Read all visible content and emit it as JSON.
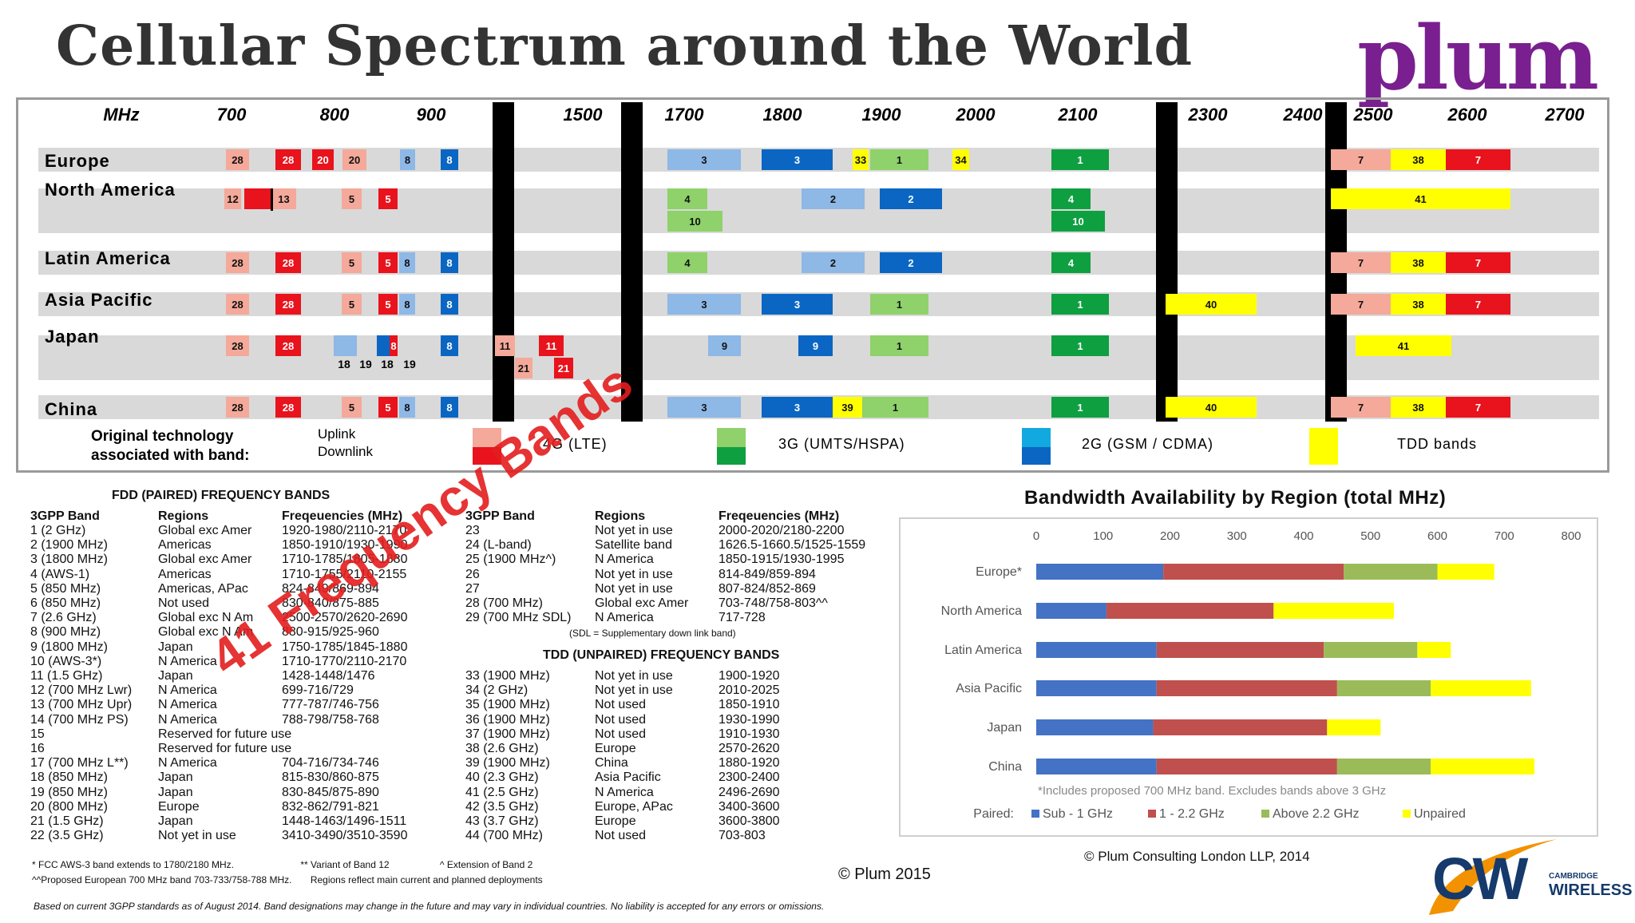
{
  "page_title": "Cellular Spectrum around the World",
  "logo_text": "plum",
  "colors": {
    "lte_uplink": "#f4a99a",
    "lte_downlink": "#e8131c",
    "g3_uplink": "#8fd16a",
    "g3_downlink": "#0e9f41",
    "g2_uplink": "#8eb8e6",
    "g2_downlink": "#0a66c2",
    "tdd": "#ffff00",
    "row_bg": "#d9d9d9",
    "divider": "#000000"
  },
  "spectrum": {
    "axis_unit": "MHz",
    "ticks": [
      "700",
      "800",
      "900",
      "1500",
      "1700",
      "1800",
      "1900",
      "2000",
      "2100",
      "2300",
      "2400",
      "2500",
      "2600",
      "2700"
    ],
    "regions": [
      "Europe",
      "North America",
      "Latin America",
      "Asia Pacific",
      "Japan",
      "China"
    ],
    "japan_sublabels": [
      "18",
      "19",
      "18",
      "19"
    ],
    "legend": {
      "title_line1": "Original technology",
      "title_line2": "associated with band:",
      "uplink": "Uplink",
      "downlink": "Downlink",
      "items": [
        "4G (LTE)",
        "3G (UMTS/HSPA)",
        "2G (GSM / CDMA)",
        "TDD bands"
      ]
    },
    "bands": [
      {
        "region": 0,
        "label": "28",
        "kind": "lte_uplink",
        "x1": 283,
        "x2": 312,
        "lane": 0
      },
      {
        "region": 0,
        "label": "28",
        "kind": "lte_downlink",
        "x1": 345,
        "x2": 377,
        "lane": 0
      },
      {
        "region": 0,
        "label": "20",
        "kind": "lte_downlink",
        "x1": 391,
        "x2": 418,
        "lane": 0
      },
      {
        "region": 0,
        "label": "20",
        "kind": "lte_uplink",
        "x1": 429,
        "x2": 459,
        "lane": 0
      },
      {
        "region": 0,
        "label": "8",
        "kind": "g2_uplink",
        "x1": 501,
        "x2": 520,
        "lane": 0
      },
      {
        "region": 0,
        "label": "8",
        "kind": "g2_downlink",
        "x1": 552,
        "x2": 574,
        "lane": 0
      },
      {
        "region": 0,
        "label": "3",
        "kind": "g2_uplink",
        "x1": 836,
        "x2": 928,
        "lane": 0
      },
      {
        "region": 0,
        "label": "3",
        "kind": "g2_downlink",
        "x1": 954,
        "x2": 1043,
        "lane": 0
      },
      {
        "region": 0,
        "label": "33",
        "kind": "tdd",
        "x1": 1068,
        "x2": 1088,
        "lane": 0
      },
      {
        "region": 0,
        "label": "1",
        "kind": "g3_uplink",
        "x1": 1090,
        "x2": 1163,
        "lane": 0
      },
      {
        "region": 0,
        "label": "34",
        "kind": "tdd",
        "x1": 1193,
        "x2": 1214,
        "lane": 0
      },
      {
        "region": 0,
        "label": "1",
        "kind": "g3_downlink",
        "x1": 1317,
        "x2": 1389,
        "lane": 0
      },
      {
        "region": 0,
        "label": "7",
        "kind": "lte_uplink",
        "x1": 1667,
        "x2": 1742,
        "lane": 0
      },
      {
        "region": 0,
        "label": "38",
        "kind": "tdd",
        "x1": 1742,
        "x2": 1811,
        "lane": 0
      },
      {
        "region": 0,
        "label": "7",
        "kind": "lte_downlink",
        "x1": 1811,
        "x2": 1892,
        "lane": 0
      },
      {
        "region": 1,
        "label": "12",
        "kind": "lte_uplink",
        "x1": 281,
        "x2": 302,
        "lane": 0
      },
      {
        "region": 1,
        "label": "",
        "kind": "lte_downlink",
        "x1": 306,
        "x2": 340,
        "lane": 0
      },
      {
        "region": 1,
        "label": "13",
        "kind": "lte_uplink",
        "x1": 340,
        "x2": 371,
        "lane": 0
      },
      {
        "region": 1,
        "label": "5",
        "kind": "lte_uplink",
        "x1": 428,
        "x2": 453,
        "lane": 0
      },
      {
        "region": 1,
        "label": "5",
        "kind": "lte_downlink",
        "x1": 474,
        "x2": 498,
        "lane": 0
      },
      {
        "region": 1,
        "label": "4",
        "kind": "g3_uplink",
        "x1": 836,
        "x2": 886,
        "lane": 0
      },
      {
        "region": 1,
        "label": "10",
        "kind": "g3_uplink",
        "x1": 836,
        "x2": 905,
        "lane": 1
      },
      {
        "region": 1,
        "label": "2",
        "kind": "g2_uplink",
        "x1": 1004,
        "x2": 1083,
        "lane": 0
      },
      {
        "region": 1,
        "label": "2",
        "kind": "g2_downlink",
        "x1": 1102,
        "x2": 1180,
        "lane": 0
      },
      {
        "region": 1,
        "label": "4",
        "kind": "g3_downlink",
        "x1": 1317,
        "x2": 1366,
        "lane": 0
      },
      {
        "region": 1,
        "label": "10",
        "kind": "g3_downlink",
        "x1": 1317,
        "x2": 1384,
        "lane": 1
      },
      {
        "region": 1,
        "label": "41",
        "kind": "tdd",
        "x1": 1667,
        "x2": 1892,
        "lane": 0
      },
      {
        "region": 2,
        "label": "28",
        "kind": "lte_uplink",
        "x1": 283,
        "x2": 312,
        "lane": 0
      },
      {
        "region": 2,
        "label": "28",
        "kind": "lte_downlink",
        "x1": 345,
        "x2": 377,
        "lane": 0
      },
      {
        "region": 2,
        "label": "5",
        "kind": "lte_uplink",
        "x1": 428,
        "x2": 453,
        "lane": 0
      },
      {
        "region": 2,
        "label": "5",
        "kind": "lte_downlink",
        "x1": 474,
        "x2": 498,
        "lane": 0
      },
      {
        "region": 2,
        "label": "8",
        "kind": "g2_uplink",
        "x1": 500,
        "x2": 520,
        "lane": 0
      },
      {
        "region": 2,
        "label": "8",
        "kind": "g2_downlink",
        "x1": 552,
        "x2": 574,
        "lane": 0
      },
      {
        "region": 2,
        "label": "4",
        "kind": "g3_uplink",
        "x1": 836,
        "x2": 886,
        "lane": 0
      },
      {
        "region": 2,
        "label": "2",
        "kind": "g2_uplink",
        "x1": 1004,
        "x2": 1083,
        "lane": 0
      },
      {
        "region": 2,
        "label": "2",
        "kind": "g2_downlink",
        "x1": 1102,
        "x2": 1180,
        "lane": 0
      },
      {
        "region": 2,
        "label": "4",
        "kind": "g3_downlink",
        "x1": 1317,
        "x2": 1366,
        "lane": 0
      },
      {
        "region": 2,
        "label": "7",
        "kind": "lte_uplink",
        "x1": 1667,
        "x2": 1742,
        "lane": 0
      },
      {
        "region": 2,
        "label": "38",
        "kind": "tdd",
        "x1": 1742,
        "x2": 1811,
        "lane": 0
      },
      {
        "region": 2,
        "label": "7",
        "kind": "lte_downlink",
        "x1": 1811,
        "x2": 1892,
        "lane": 0
      },
      {
        "region": 3,
        "label": "28",
        "kind": "lte_uplink",
        "x1": 283,
        "x2": 312,
        "lane": 0
      },
      {
        "region": 3,
        "label": "28",
        "kind": "lte_downlink",
        "x1": 345,
        "x2": 377,
        "lane": 0
      },
      {
        "region": 3,
        "label": "5",
        "kind": "lte_uplink",
        "x1": 428,
        "x2": 453,
        "lane": 0
      },
      {
        "region": 3,
        "label": "5",
        "kind": "lte_downlink",
        "x1": 474,
        "x2": 498,
        "lane": 0
      },
      {
        "region": 3,
        "label": "8",
        "kind": "g2_uplink",
        "x1": 500,
        "x2": 520,
        "lane": 0
      },
      {
        "region": 3,
        "label": "8",
        "kind": "g2_downlink",
        "x1": 552,
        "x2": 574,
        "lane": 0
      },
      {
        "region": 3,
        "label": "3",
        "kind": "g2_uplink",
        "x1": 836,
        "x2": 928,
        "lane": 0
      },
      {
        "region": 3,
        "label": "3",
        "kind": "g2_downlink",
        "x1": 954,
        "x2": 1043,
        "lane": 0
      },
      {
        "region": 3,
        "label": "1",
        "kind": "g3_uplink",
        "x1": 1090,
        "x2": 1163,
        "lane": 0
      },
      {
        "region": 3,
        "label": "1",
        "kind": "g3_downlink",
        "x1": 1317,
        "x2": 1389,
        "lane": 0
      },
      {
        "region": 3,
        "label": "40",
        "kind": "tdd",
        "x1": 1460,
        "x2": 1574,
        "lane": 0
      },
      {
        "region": 3,
        "label": "7",
        "kind": "lte_uplink",
        "x1": 1667,
        "x2": 1742,
        "lane": 0
      },
      {
        "region": 3,
        "label": "38",
        "kind": "tdd",
        "x1": 1742,
        "x2": 1811,
        "lane": 0
      },
      {
        "region": 3,
        "label": "7",
        "kind": "lte_downlink",
        "x1": 1811,
        "x2": 1892,
        "lane": 0
      },
      {
        "region": 4,
        "label": "28",
        "kind": "lte_uplink",
        "x1": 283,
        "x2": 312,
        "lane": 0
      },
      {
        "region": 4,
        "label": "28",
        "kind": "lte_downlink",
        "x1": 345,
        "x2": 377,
        "lane": 0
      },
      {
        "region": 4,
        "label": "",
        "kind": "g2_uplink",
        "x1": 418,
        "x2": 428,
        "lane": 0
      },
      {
        "region": 4,
        "label": "",
        "kind": "g2_uplink",
        "x1": 428,
        "x2": 447,
        "lane": 0
      },
      {
        "region": 4,
        "label": "",
        "kind": "g2_downlink",
        "x1": 472,
        "x2": 488,
        "lane": 0
      },
      {
        "region": 4,
        "label": "8",
        "kind": "lte_downlink",
        "x1": 488,
        "x2": 498,
        "lane": 0
      },
      {
        "region": 4,
        "label": "8",
        "kind": "g2_downlink",
        "x1": 552,
        "x2": 574,
        "lane": 0
      },
      {
        "region": 4,
        "label": "11",
        "kind": "lte_uplink",
        "x1": 620,
        "x2": 645,
        "lane": 0
      },
      {
        "region": 4,
        "label": "21",
        "kind": "lte_uplink",
        "x1": 645,
        "x2": 667,
        "lane": 1
      },
      {
        "region": 4,
        "label": "11",
        "kind": "lte_downlink",
        "x1": 675,
        "x2": 706,
        "lane": 0
      },
      {
        "region": 4,
        "label": "21",
        "kind": "lte_downlink",
        "x1": 694,
        "x2": 718,
        "lane": 1
      },
      {
        "region": 4,
        "label": "9",
        "kind": "g2_uplink",
        "x1": 887,
        "x2": 928,
        "lane": 0
      },
      {
        "region": 4,
        "label": "9",
        "kind": "g2_downlink",
        "x1": 1000,
        "x2": 1043,
        "lane": 0
      },
      {
        "region": 4,
        "label": "1",
        "kind": "g3_uplink",
        "x1": 1090,
        "x2": 1163,
        "lane": 0
      },
      {
        "region": 4,
        "label": "1",
        "kind": "g3_downlink",
        "x1": 1317,
        "x2": 1389,
        "lane": 0
      },
      {
        "region": 4,
        "label": "41",
        "kind": "tdd",
        "x1": 1698,
        "x2": 1818,
        "lane": 0
      },
      {
        "region": 5,
        "label": "28",
        "kind": "lte_uplink",
        "x1": 283,
        "x2": 312,
        "lane": 0
      },
      {
        "region": 5,
        "label": "28",
        "kind": "lte_downlink",
        "x1": 345,
        "x2": 377,
        "lane": 0
      },
      {
        "region": 5,
        "label": "5",
        "kind": "lte_uplink",
        "x1": 428,
        "x2": 453,
        "lane": 0
      },
      {
        "region": 5,
        "label": "5",
        "kind": "lte_downlink",
        "x1": 474,
        "x2": 498,
        "lane": 0
      },
      {
        "region": 5,
        "label": "8",
        "kind": "g2_uplink",
        "x1": 500,
        "x2": 520,
        "lane": 0
      },
      {
        "region": 5,
        "label": "8",
        "kind": "g2_downlink",
        "x1": 552,
        "x2": 574,
        "lane": 0
      },
      {
        "region": 5,
        "label": "3",
        "kind": "g2_uplink",
        "x1": 836,
        "x2": 928,
        "lane": 0
      },
      {
        "region": 5,
        "label": "3",
        "kind": "g2_downlink",
        "x1": 954,
        "x2": 1043,
        "lane": 0
      },
      {
        "region": 5,
        "label": "39",
        "kind": "tdd",
        "x1": 1043,
        "x2": 1080,
        "lane": 0
      },
      {
        "region": 5,
        "label": "1",
        "kind": "g3_uplink",
        "x1": 1080,
        "x2": 1163,
        "lane": 0
      },
      {
        "region": 5,
        "label": "1",
        "kind": "g3_downlink",
        "x1": 1317,
        "x2": 1389,
        "lane": 0
      },
      {
        "region": 5,
        "label": "40",
        "kind": "tdd",
        "x1": 1460,
        "x2": 1574,
        "lane": 0
      },
      {
        "region": 5,
        "label": "7",
        "kind": "lte_uplink",
        "x1": 1667,
        "x2": 1742,
        "lane": 0
      },
      {
        "region": 5,
        "label": "38",
        "kind": "tdd",
        "x1": 1742,
        "x2": 1811,
        "lane": 0
      },
      {
        "region": 5,
        "label": "7",
        "kind": "lte_downlink",
        "x1": 1811,
        "x2": 1892,
        "lane": 0
      }
    ]
  },
  "fdd": {
    "title": "FDD (PAIRED) FREQUENCY BANDS",
    "headers": [
      "3GPP Band",
      "Regions",
      "Freqeuencies (MHz)"
    ],
    "left_rows": [
      [
        "1 (2 GHz)",
        "Global exc Amer",
        "1920-1980/2110-2170"
      ],
      [
        "2 (1900 MHz)",
        "Americas",
        "1850-1910/1930-1990"
      ],
      [
        "3 (1800 MHz)",
        "Global exc Amer",
        "1710-1785/1805-1880"
      ],
      [
        "4 (AWS-1)",
        "Americas",
        "1710-1755/2110-2155"
      ],
      [
        "5 (850 MHz)",
        "Americas, APac",
        "824-849/869-894"
      ],
      [
        "6 (850 MHz)",
        "Not used",
        "830-840/875-885"
      ],
      [
        "7 (2.6 GHz)",
        "Global exc N Am",
        "2500-2570/2620-2690"
      ],
      [
        "8 (900 MHz)",
        "Global exc N Am",
        "880-915/925-960"
      ],
      [
        "9 (1800 MHz)",
        "Japan",
        "1750-1785/1845-1880"
      ],
      [
        "10 (AWS-3*)",
        "N America",
        "1710-1770/2110-2170"
      ],
      [
        "11 (1.5 GHz)",
        "Japan",
        "1428-1448/1476"
      ],
      [
        "12 (700 MHz Lwr)",
        "N America",
        "699-716/729"
      ],
      [
        "13 (700 MHz Upr)",
        "N America",
        "777-787/746-756"
      ],
      [
        "14 (700 MHz PS)",
        "N America",
        "788-798/758-768"
      ],
      [
        "15",
        "Reserved for future use",
        ""
      ],
      [
        "16",
        "Reserved for future use",
        ""
      ],
      [
        "17 (700 MHz L**)",
        "N America",
        "704-716/734-746"
      ],
      [
        "18 (850 MHz)",
        "Japan",
        "815-830/860-875"
      ],
      [
        "19 (850 MHz)",
        "Japan",
        "830-845/875-890"
      ],
      [
        "20 (800 MHz)",
        "Europe",
        "832-862/791-821"
      ],
      [
        "21 (1.5 GHz)",
        "Japan",
        "1448-1463/1496-1511"
      ],
      [
        "22 (3.5 GHz)",
        "Not yet in use",
        "3410-3490/3510-3590"
      ]
    ],
    "right_rows": [
      [
        "23",
        "Not yet in use",
        "2000-2020/2180-2200"
      ],
      [
        "24 (L-band)",
        "Satellite band",
        "1626.5-1660.5/1525-1559"
      ],
      [
        "25 (1900 MHz^)",
        "N America",
        "1850-1915/1930-1995"
      ],
      [
        "26",
        "Not yet in use",
        "814-849/859-894"
      ],
      [
        "27",
        "Not yet in use",
        "807-824/852-869"
      ],
      [
        "28 (700 MHz)",
        "Global exc Amer",
        "703-748/758-803^^"
      ],
      [
        "29 (700 MHz SDL)",
        "N America",
        "717-728"
      ]
    ],
    "sdl_note": "(SDL = Supplementary down link band)"
  },
  "tdd": {
    "title": "TDD (UNPAIRED) FREQUENCY BANDS",
    "rows": [
      [
        "33 (1900 MHz)",
        "Not yet in use",
        "1900-1920"
      ],
      [
        "34 (2 GHz)",
        "Not yet in use",
        "2010-2025"
      ],
      [
        "35 (1900 MHz)",
        "Not used",
        "1850-1910"
      ],
      [
        "36 (1900 MHz)",
        "Not used",
        "1930-1990"
      ],
      [
        "37 (1900 MHz)",
        "Not used",
        "1910-1930"
      ],
      [
        "38 (2.6 GHz)",
        "Europe",
        "2570-2620"
      ],
      [
        "39 (1900 MHz)",
        "China",
        "1880-1920"
      ],
      [
        "40 (2.3 GHz)",
        "Asia Pacific",
        "2300-2400"
      ],
      [
        "41 (2.5 GHz)",
        "N America",
        "2496-2690"
      ],
      [
        "42 (3.5 GHz)",
        "Europe, APac",
        "3400-3600"
      ],
      [
        "43 (3.7 GHz)",
        "Europe",
        "3600-3800"
      ],
      [
        "44 (700 MHz)",
        "Not used",
        "703-803"
      ]
    ]
  },
  "watermark": "41 Frequency Bands",
  "footnotes": {
    "line1": [
      "* FCC AWS-3 band extends to 1780/2180 MHz.",
      "** Variant of Band 12",
      "^ Extension of Band 2"
    ],
    "line2": [
      "^^Proposed European 700 MHz band 703-733/758-788 MHz.",
      "Regions reflect main current and planned deployments"
    ],
    "disclaimer": "Based on current 3GPP standards as of August 2014.  Band designations may change in the future and may vary in individual countries.   No liability is accepted for any errors or omissions.",
    "copyright": "© Plum 2015"
  },
  "chart_data": {
    "type": "bar",
    "stacked": true,
    "orientation": "horizontal",
    "title": "Bandwidth Availability by Region (total MHz)",
    "categories": [
      "Europe*",
      "North America",
      "Latin America",
      "Asia Pacific",
      "Japan",
      "China"
    ],
    "series": [
      {
        "name": "Sub - 1 GHz",
        "color": "#4472c4",
        "values": [
          190,
          105,
          180,
          180,
          175,
          180
        ]
      },
      {
        "name": "1 - 2.2 GHz",
        "color": "#c0504d",
        "values": [
          270,
          250,
          250,
          270,
          260,
          270
        ]
      },
      {
        "name": "Above 2.2 GHz",
        "color": "#9bbb59",
        "values": [
          140,
          0,
          140,
          140,
          0,
          140
        ]
      },
      {
        "name": "Unpaired",
        "color": "#ffff00",
        "values": [
          85,
          180,
          50,
          150,
          80,
          155
        ]
      }
    ],
    "xlim": [
      0,
      800
    ],
    "xticks": [
      "0",
      "100",
      "200",
      "300",
      "400",
      "500",
      "600",
      "700",
      "800"
    ],
    "legend_prefix": "Paired:",
    "note": "*Includes proposed 700 MHz band.  Excludes bands above 3 GHz",
    "grid": false,
    "legend_position": "bottom"
  },
  "bw_copyright": "© Plum Consulting London LLP, 2014",
  "cw_logo": {
    "main": "CW",
    "line1": "CAMBRIDGE",
    "line2": "WIRELESS"
  }
}
